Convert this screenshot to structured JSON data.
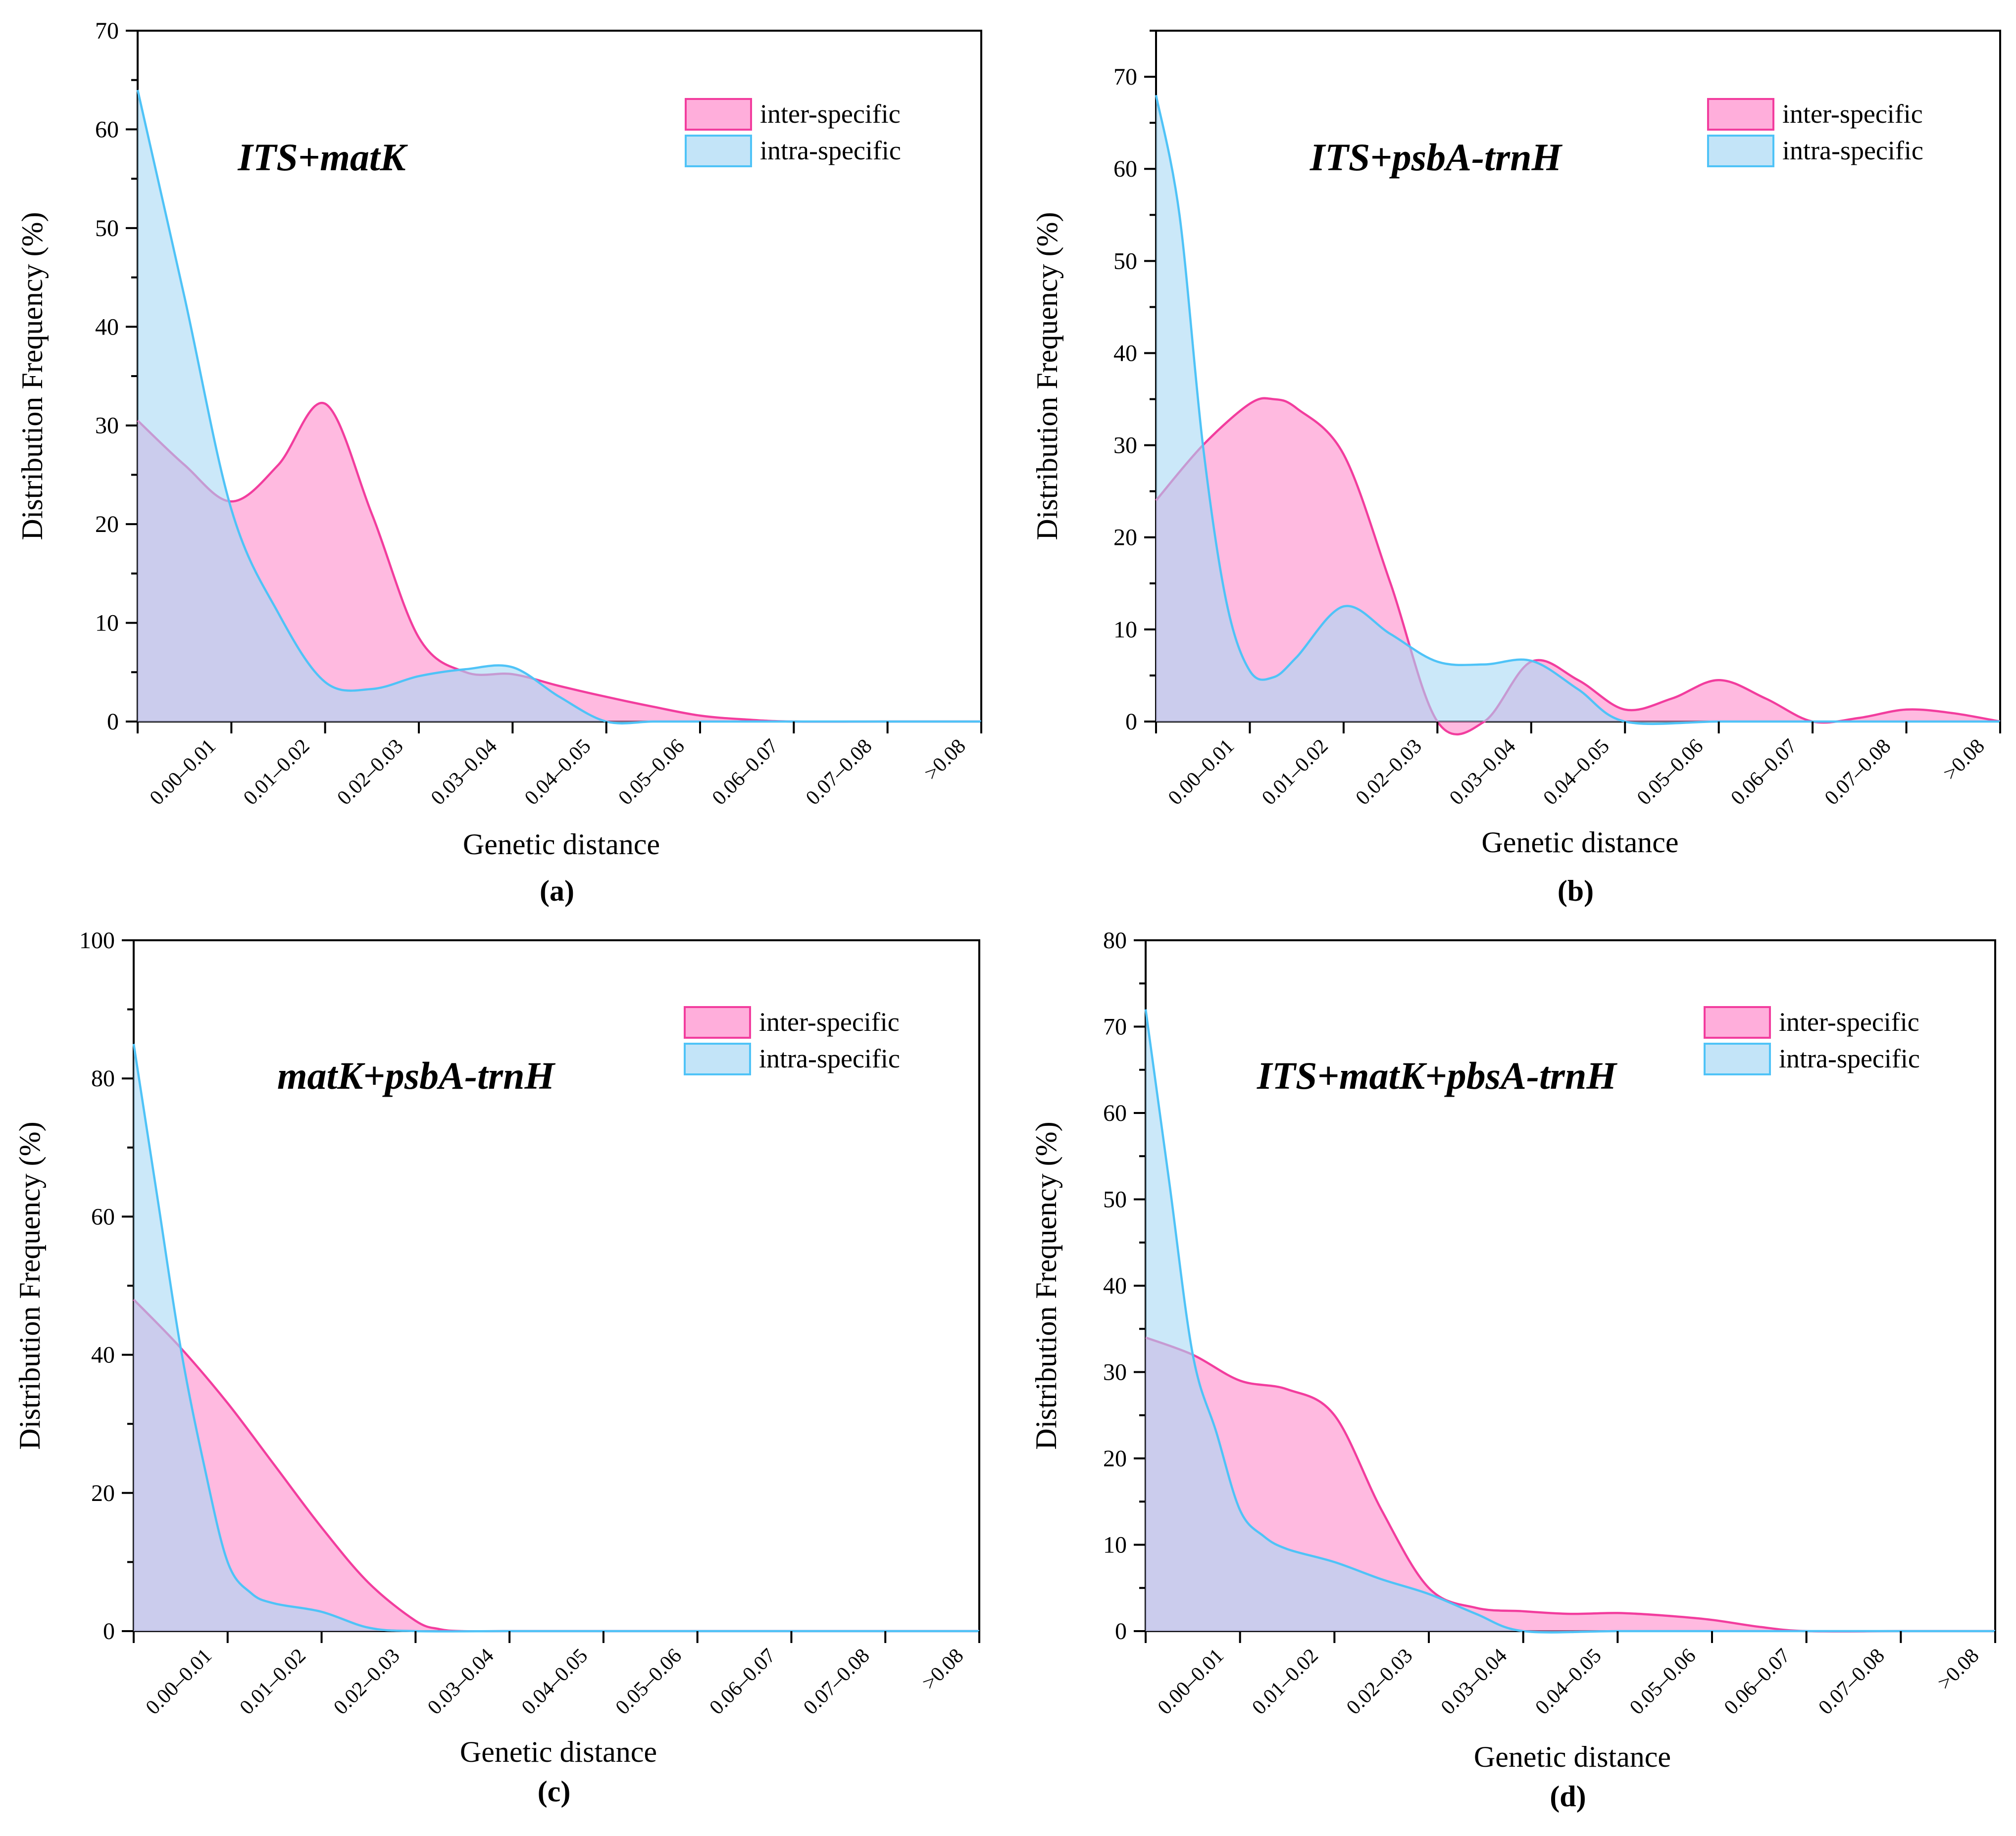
{
  "figure": {
    "colors": {
      "inter": "#f23d9e",
      "intra": "#4fc3f7"
    },
    "legend_labels": [
      "inter-specific",
      "intra-specific"
    ],
    "xlabel": "Genetic distance",
    "ylabel": "Distribution Frequency (%)"
  },
  "chart_data": [
    {
      "panel": "(a)",
      "type": "area",
      "title": "ITS+matK",
      "xlabel": "Genetic distance",
      "ylabel": "Distribution Frequency (%)",
      "categories": [
        "0.00–0.01",
        "0.01–0.02",
        "0.02–0.03",
        "0.03–0.04",
        "0.04–0.05",
        "0.05–0.06",
        "0.06–0.07",
        "0.07–0.08",
        ">0.08"
      ],
      "ylim": [
        0,
        70
      ],
      "yticks": [
        0,
        10,
        20,
        30,
        40,
        50,
        60,
        70
      ],
      "legend_position": "top-right",
      "series": [
        {
          "name": "inter-specific",
          "x": [
            0,
            0.5,
            1,
            1.5,
            2,
            2.5,
            3,
            3.5,
            4,
            4.5,
            5,
            5.5,
            6,
            6.5,
            7,
            8,
            9
          ],
          "values": [
            30.5,
            26,
            22.3,
            26,
            32.2,
            21,
            8.5,
            5,
            4.8,
            3.6,
            2.5,
            1.5,
            0.6,
            0.2,
            0,
            0,
            0
          ]
        },
        {
          "name": "intra-specific",
          "x": [
            0,
            0.5,
            1,
            1.5,
            2,
            2.5,
            3,
            3.5,
            4,
            4.5,
            5,
            5.5,
            6,
            6.5,
            7,
            8,
            9
          ],
          "values": [
            64,
            43,
            21.5,
            11,
            4,
            3.3,
            4.6,
            5.3,
            5.5,
            2.5,
            0,
            0,
            0,
            0,
            0,
            0,
            0
          ]
        }
      ]
    },
    {
      "panel": "(b)",
      "type": "area",
      "title": "ITS+psbA-trnH",
      "xlabel": "Genetic distance",
      "ylabel": "Distribution Frequency (%)",
      "categories": [
        "0.00–0.01",
        "0.01–0.02",
        "0.02–0.03",
        "0.03–0.04",
        "0.04–0.05",
        "0.05–0.06",
        "0.06–0.07",
        "0.07–0.08",
        ">0.08"
      ],
      "ylim": [
        0,
        75
      ],
      "yticks": [
        0,
        10,
        20,
        30,
        40,
        50,
        60,
        70
      ],
      "legend_position": "top-right",
      "series": [
        {
          "name": "inter-specific",
          "x": [
            0,
            0.5,
            1,
            1.25,
            1.5,
            2,
            2.5,
            3,
            3.5,
            4,
            4.5,
            5,
            5.5,
            6,
            6.5,
            7,
            7.5,
            8,
            8.5,
            9
          ],
          "values": [
            24,
            30,
            34.5,
            35,
            34,
            29,
            15,
            0,
            0,
            6.5,
            4.5,
            1.3,
            2.5,
            4.5,
            2.5,
            0,
            0.4,
            1.3,
            0.9,
            0
          ]
        },
        {
          "name": "intra-specific",
          "x": [
            0,
            0.25,
            0.5,
            0.75,
            1,
            1.25,
            1.5,
            2,
            2.5,
            3,
            3.5,
            4,
            4.5,
            5,
            6,
            7,
            8,
            9
          ],
          "values": [
            68,
            55,
            30,
            13,
            5.5,
            4.8,
            7,
            12.5,
            9.5,
            6.5,
            6.2,
            6.6,
            3.5,
            0,
            0,
            0,
            0,
            0
          ]
        }
      ]
    },
    {
      "panel": "(c)",
      "type": "area",
      "title": "matK+psbA-trnH",
      "xlabel": "Genetic distance",
      "ylabel": "Distribution Frequency (%)",
      "categories": [
        "0.00–0.01",
        "0.01–0.02",
        "0.02–0.03",
        "0.03–0.04",
        "0.04–0.05",
        "0.05–0.06",
        "0.06–0.07",
        "0.07–0.08",
        ">0.08"
      ],
      "ylim": [
        0,
        100
      ],
      "yticks": [
        0,
        20,
        40,
        60,
        80,
        100
      ],
      "legend_position": "top-right",
      "series": [
        {
          "name": "inter-specific",
          "x": [
            0,
            0.5,
            1,
            1.5,
            2,
            2.5,
            3,
            3.25,
            3.5,
            4,
            5,
            6,
            7,
            8,
            9
          ],
          "values": [
            48,
            41,
            33,
            24,
            15,
            7,
            1.5,
            0.3,
            0,
            0,
            0,
            0,
            0,
            0,
            0
          ]
        },
        {
          "name": "intra-specific",
          "x": [
            0,
            0.25,
            0.5,
            0.75,
            1,
            1.25,
            1.5,
            2,
            2.5,
            3,
            4,
            5,
            6,
            7,
            8,
            9
          ],
          "values": [
            85,
            63,
            41,
            24,
            10,
            5.5,
            4,
            2.8,
            0.5,
            0,
            0,
            0,
            0,
            0,
            0,
            0
          ]
        }
      ]
    },
    {
      "panel": "(d)",
      "type": "area",
      "title": "ITS+matK+pbsA-trnH",
      "xlabel": "Genetic distance",
      "ylabel": "Distribution Frequency (%)",
      "categories": [
        "0.00–0.01",
        "0.01–0.02",
        "0.02–0.03",
        "0.03–0.04",
        "0.04–0.05",
        "0.05–0.06",
        "0.06–0.07",
        "0.07–0.08",
        ">0.08"
      ],
      "ylim": [
        0,
        80
      ],
      "yticks": [
        0,
        10,
        20,
        30,
        40,
        50,
        60,
        70,
        80
      ],
      "legend_position": "top-right",
      "series": [
        {
          "name": "inter-specific",
          "x": [
            0,
            0.5,
            1,
            1.5,
            2,
            2.5,
            3,
            3.5,
            4,
            4.5,
            5,
            5.5,
            6,
            6.5,
            7,
            8,
            9
          ],
          "values": [
            34,
            32,
            29,
            28,
            25,
            14,
            5,
            2.7,
            2.3,
            2,
            2.1,
            1.8,
            1.3,
            0.5,
            0,
            0,
            0
          ]
        },
        {
          "name": "intra-specific",
          "x": [
            0,
            0.25,
            0.5,
            0.75,
            1,
            1.25,
            1.5,
            2,
            2.5,
            3,
            3.5,
            4,
            5,
            6,
            7,
            8,
            9
          ],
          "values": [
            72,
            52,
            32,
            23,
            14,
            11,
            9.5,
            8,
            6,
            4.3,
            2,
            0,
            0,
            0,
            0,
            0,
            0
          ]
        }
      ]
    }
  ]
}
